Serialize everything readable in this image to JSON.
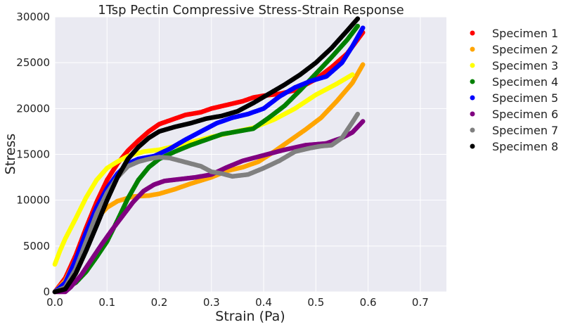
{
  "chart_data": {
    "type": "scatter",
    "title": "1Tsp Pectin Compressive Stress-Strain Response",
    "xlabel": "Strain (Pa)",
    "ylabel": "Stress",
    "xlim": [
      0,
      0.75
    ],
    "ylim": [
      0,
      30000
    ],
    "x_ticks": [
      0.0,
      0.1,
      0.2,
      0.3,
      0.4,
      0.5,
      0.6,
      0.7
    ],
    "x_tick_labels": [
      "0.0",
      "0.1",
      "0.2",
      "0.3",
      "0.4",
      "0.5",
      "0.6",
      "0.7"
    ],
    "y_ticks": [
      0,
      5000,
      10000,
      15000,
      20000,
      25000,
      30000
    ],
    "y_tick_labels": [
      "0",
      "5000",
      "10000",
      "15000",
      "20000",
      "25000",
      "30000"
    ],
    "grid": true,
    "background": "#EAEAF2",
    "legend_position": "outside-right",
    "series": [
      {
        "name": "Specimen 1",
        "color": "#FF0000",
        "x": [
          0.0,
          0.02,
          0.04,
          0.06,
          0.08,
          0.1,
          0.12,
          0.14,
          0.16,
          0.18,
          0.2,
          0.22,
          0.25,
          0.28,
          0.3,
          0.33,
          0.36,
          0.38,
          0.4,
          0.43,
          0.46,
          0.5,
          0.53,
          0.56,
          0.59
        ],
        "y": [
          0,
          1500,
          4000,
          7000,
          9800,
          12200,
          14000,
          15400,
          16500,
          17500,
          18300,
          18700,
          19300,
          19600,
          20000,
          20400,
          20800,
          21200,
          21400,
          21600,
          22000,
          23200,
          24500,
          26000,
          28300
        ]
      },
      {
        "name": "Specimen 2",
        "color": "#FFA500",
        "x": [
          0.0,
          0.02,
          0.04,
          0.06,
          0.08,
          0.1,
          0.12,
          0.15,
          0.18,
          0.2,
          0.23,
          0.26,
          0.3,
          0.33,
          0.36,
          0.39,
          0.42,
          0.45,
          0.48,
          0.51,
          0.54,
          0.57,
          0.59
        ],
        "y": [
          0,
          1200,
          3500,
          6200,
          8000,
          9200,
          9900,
          10400,
          10500,
          10700,
          11200,
          11800,
          12500,
          13200,
          13600,
          14200,
          15300,
          16500,
          17700,
          19000,
          20800,
          22800,
          24800
        ]
      },
      {
        "name": "Specimen 3",
        "color": "#FFFF00",
        "x": [
          0.0,
          0.01,
          0.02,
          0.04,
          0.06,
          0.08,
          0.1,
          0.12,
          0.14,
          0.17,
          0.2,
          0.23,
          0.26,
          0.3,
          0.34,
          0.38,
          0.42,
          0.46,
          0.5,
          0.54,
          0.57
        ],
        "y": [
          3000,
          4500,
          5800,
          8000,
          10300,
          12200,
          13500,
          14200,
          14800,
          15300,
          15500,
          15900,
          16300,
          16900,
          17400,
          17900,
          18800,
          20000,
          21500,
          22700,
          23700
        ]
      },
      {
        "name": "Specimen 4",
        "color": "#008000",
        "x": [
          0.0,
          0.02,
          0.04,
          0.06,
          0.08,
          0.1,
          0.12,
          0.14,
          0.16,
          0.18,
          0.2,
          0.23,
          0.26,
          0.29,
          0.32,
          0.35,
          0.38,
          0.41,
          0.44,
          0.47,
          0.5,
          0.53,
          0.56,
          0.58
        ],
        "y": [
          0,
          400,
          1000,
          2200,
          3800,
          5500,
          7800,
          10200,
          12200,
          13600,
          14500,
          15300,
          16000,
          16600,
          17200,
          17500,
          17800,
          19000,
          20300,
          22000,
          23800,
          25600,
          27500,
          29000
        ]
      },
      {
        "name": "Specimen 5",
        "color": "#0000FF",
        "x": [
          0.0,
          0.02,
          0.04,
          0.06,
          0.08,
          0.1,
          0.12,
          0.14,
          0.16,
          0.19,
          0.22,
          0.25,
          0.28,
          0.31,
          0.34,
          0.37,
          0.4,
          0.43,
          0.46,
          0.49,
          0.52,
          0.55,
          0.57,
          0.59
        ],
        "y": [
          0,
          1000,
          3500,
          6500,
          9200,
          11300,
          12900,
          14000,
          14500,
          14800,
          15600,
          16600,
          17500,
          18400,
          19000,
          19400,
          20000,
          21300,
          22300,
          23000,
          23500,
          25000,
          26800,
          28800
        ]
      },
      {
        "name": "Specimen 6",
        "color": "#800080",
        "x": [
          0.0,
          0.02,
          0.03,
          0.05,
          0.07,
          0.09,
          0.11,
          0.13,
          0.15,
          0.17,
          0.19,
          0.21,
          0.24,
          0.27,
          0.3,
          0.33,
          0.36,
          0.4,
          0.44,
          0.48,
          0.52,
          0.55,
          0.57,
          0.59
        ],
        "y": [
          0,
          0,
          500,
          1800,
          3500,
          5200,
          6800,
          8300,
          9800,
          11000,
          11700,
          12100,
          12300,
          12500,
          12800,
          13600,
          14300,
          14900,
          15500,
          16000,
          16200,
          16800,
          17400,
          18600
        ]
      },
      {
        "name": "Specimen 7",
        "color": "#808080",
        "x": [
          0.0,
          0.02,
          0.04,
          0.06,
          0.08,
          0.1,
          0.12,
          0.14,
          0.16,
          0.18,
          0.2,
          0.22,
          0.24,
          0.26,
          0.28,
          0.3,
          0.32,
          0.34,
          0.37,
          0.4,
          0.43,
          0.46,
          0.49,
          0.51,
          0.53,
          0.55,
          0.57,
          0.58
        ],
        "y": [
          0,
          500,
          2500,
          5500,
          8500,
          10800,
          12500,
          13700,
          14200,
          14500,
          14700,
          14600,
          14300,
          14000,
          13700,
          13100,
          12900,
          12600,
          12800,
          13500,
          14300,
          15300,
          15700,
          15900,
          16000,
          16800,
          18500,
          19400
        ]
      },
      {
        "name": "Specimen 8",
        "color": "#000000",
        "x": [
          0.0,
          0.02,
          0.04,
          0.06,
          0.08,
          0.1,
          0.12,
          0.14,
          0.16,
          0.18,
          0.2,
          0.23,
          0.26,
          0.29,
          0.32,
          0.35,
          0.38,
          0.41,
          0.44,
          0.47,
          0.5,
          0.53,
          0.56,
          0.58
        ],
        "y": [
          0,
          300,
          2000,
          4500,
          7200,
          10000,
          12500,
          14500,
          15800,
          16800,
          17500,
          18000,
          18400,
          18900,
          19200,
          19700,
          20600,
          21600,
          22600,
          23700,
          25000,
          26600,
          28500,
          29800
        ]
      }
    ]
  }
}
